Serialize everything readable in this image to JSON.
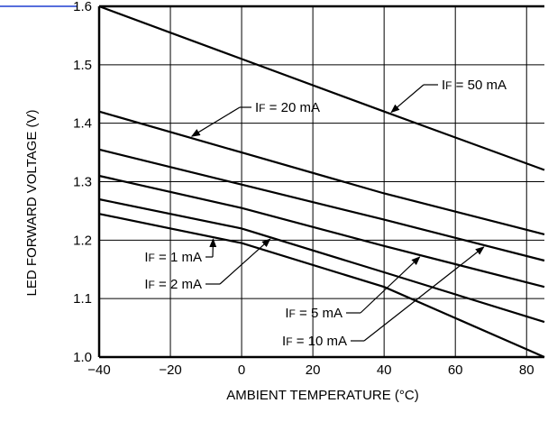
{
  "chart_data": {
    "type": "line",
    "title": "",
    "xlabel": "AMBIENT TEMPERATURE (°C)",
    "ylabel": "LED FORWARD VOLTAGE (V)",
    "xlim": [
      -40,
      85
    ],
    "ylim": [
      1.0,
      1.6
    ],
    "x_ticks": [
      -40,
      -20,
      0,
      20,
      40,
      60,
      80
    ],
    "x_tick_labels": [
      "−40",
      "−20",
      "0",
      "20",
      "40",
      "60",
      "80"
    ],
    "y_ticks": [
      1.0,
      1.1,
      1.2,
      1.3,
      1.4,
      1.5,
      1.6
    ],
    "y_tick_labels": [
      "1.0",
      "1.1",
      "1.2",
      "1.3",
      "1.4",
      "1.5",
      "1.6"
    ],
    "grid": true,
    "series": [
      {
        "name": "IF = 50 mA",
        "x": [
          -40,
          0,
          40,
          85
        ],
        "y": [
          1.6,
          1.51,
          1.42,
          1.32
        ]
      },
      {
        "name": "IF = 20 mA",
        "x": [
          -40,
          0,
          40,
          85
        ],
        "y": [
          1.42,
          1.35,
          1.28,
          1.21
        ]
      },
      {
        "name": "IF = 10 mA",
        "x": [
          -40,
          0,
          40,
          85
        ],
        "y": [
          1.355,
          1.295,
          1.235,
          1.165
        ]
      },
      {
        "name": "IF = 5 mA",
        "x": [
          -40,
          0,
          40,
          85
        ],
        "y": [
          1.31,
          1.255,
          1.19,
          1.12
        ]
      },
      {
        "name": "IF = 2 mA",
        "x": [
          -40,
          0,
          40,
          85
        ],
        "y": [
          1.27,
          1.22,
          1.145,
          1.06
        ]
      },
      {
        "name": "IF = 1 mA",
        "x": [
          -40,
          0,
          40,
          85
        ],
        "y": [
          1.245,
          1.195,
          1.12,
          1.0
        ]
      }
    ],
    "annotations": [
      {
        "series": "IF = 50 mA",
        "prefix": "I",
        "sub": "F",
        "suffix": " = 50 mA"
      },
      {
        "series": "IF = 20 mA",
        "prefix": "I",
        "sub": "F",
        "suffix": " = 20 mA"
      },
      {
        "series": "IF = 1 mA",
        "prefix": "I",
        "sub": "F",
        "suffix": " = 1 mA"
      },
      {
        "series": "IF = 2 mA",
        "prefix": "I",
        "sub": "F",
        "suffix": " = 2 mA"
      },
      {
        "series": "IF = 5 mA",
        "prefix": "I",
        "sub": "F",
        "suffix": " = 5 mA"
      },
      {
        "series": "IF = 10 mA",
        "prefix": "I",
        "sub": "F",
        "suffix": " = 10 mA"
      }
    ]
  }
}
